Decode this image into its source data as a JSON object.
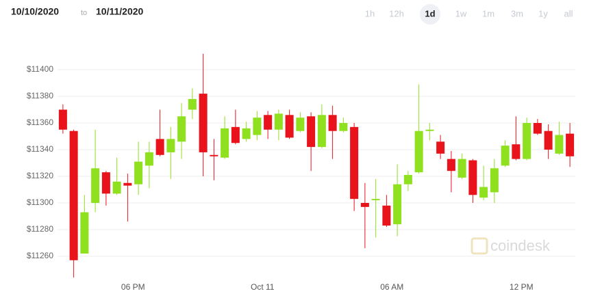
{
  "header": {
    "start_date": "10/10/2020",
    "separator": "to",
    "end_date": "10/11/2020"
  },
  "range_buttons": [
    "1h",
    "12h",
    "1d",
    "1w",
    "1m",
    "3m",
    "1y",
    "all"
  ],
  "selected_range": 2,
  "watermark": "coindesk",
  "chart_data": {
    "type": "candlestick",
    "categories": [
      null,
      null,
      null,
      null,
      null,
      null,
      null,
      null,
      null,
      null,
      null,
      null,
      null,
      null,
      null,
      null,
      null,
      null,
      null,
      null,
      null,
      null,
      null,
      null,
      null,
      null,
      null,
      null,
      null,
      null,
      null,
      null,
      null,
      null,
      null,
      null,
      null,
      null,
      null,
      null,
      null,
      null,
      null,
      null,
      null,
      null,
      null,
      null
    ],
    "open": [
      11370,
      11354,
      11262,
      11300,
      11323,
      11307,
      11315,
      11314,
      11328,
      11348,
      11338,
      11346,
      11370,
      11382,
      11336,
      11334,
      11357,
      11348,
      11351,
      11366,
      11355,
      11366,
      11354,
      11365,
      11342,
      11366,
      11354,
      11357,
      11300,
      11302,
      11298,
      11284,
      11314,
      11323,
      11354,
      11346,
      11333,
      11319,
      11332,
      11304,
      11308,
      11328,
      11344,
      11333,
      11360,
      11354,
      11337,
      11352
    ],
    "high": [
      11374,
      11355,
      11306,
      11355,
      11324,
      11334,
      11322,
      11346,
      11346,
      11370,
      11357,
      11375,
      11386,
      11412,
      11348,
      11365,
      11370,
      11361,
      11369,
      11369,
      11370,
      11370,
      11368,
      11368,
      11374,
      11373,
      11364,
      11360,
      11315,
      11318,
      11306,
      11329,
      11324,
      11389,
      11360,
      11351,
      11339,
      11337,
      11333,
      11328,
      11333,
      11347,
      11365,
      11364,
      11363,
      11359,
      11361,
      11360
    ],
    "low": [
      11352,
      11244,
      11262,
      11293,
      11298,
      11306,
      11286,
      11306,
      11311,
      11335,
      11318,
      11333,
      11363,
      11320,
      11317,
      11333,
      11344,
      11346,
      11347,
      11348,
      11347,
      11348,
      11353,
      11324,
      11341,
      11333,
      11353,
      11294,
      11266,
      11274,
      11282,
      11275,
      11309,
      11322,
      11347,
      11333,
      11308,
      11318,
      11300,
      11302,
      11300,
      11327,
      11332,
      11332,
      11351,
      11333,
      11336,
      11327
    ],
    "close": [
      11355,
      11257,
      11293,
      11326,
      11307,
      11316,
      11313,
      11331,
      11338,
      11336,
      11348,
      11365,
      11378,
      11338,
      11335,
      11356,
      11345,
      11356,
      11364,
      11355,
      11367,
      11349,
      11364,
      11342,
      11366,
      11354,
      11360,
      11303,
      11297,
      11303,
      11283,
      11314,
      11321,
      11354,
      11355,
      11337,
      11324,
      11333,
      11306,
      11312,
      11326,
      11343,
      11333,
      11360,
      11352,
      11340,
      11351,
      11335
    ],
    "up_color": "#8fe01f",
    "down_color": "#e8131b",
    "xlim": [
      0,
      48
    ],
    "xticks": [
      {
        "value": 7,
        "label": "06 PM"
      },
      {
        "value": 19,
        "label": "Oct 11"
      },
      {
        "value": 31,
        "label": "06 AM"
      },
      {
        "value": 43,
        "label": "12 PM"
      }
    ],
    "ylim": [
      11240,
      11420
    ],
    "yticks": [
      {
        "value": 11260,
        "label": "$11260"
      },
      {
        "value": 11280,
        "label": "$11280"
      },
      {
        "value": 11300,
        "label": "$11300"
      },
      {
        "value": 11320,
        "label": "$11320"
      },
      {
        "value": 11340,
        "label": "$11340"
      },
      {
        "value": 11360,
        "label": "$11360"
      },
      {
        "value": 11380,
        "label": "$11380"
      },
      {
        "value": 11400,
        "label": "$11400"
      }
    ],
    "grid": true
  }
}
